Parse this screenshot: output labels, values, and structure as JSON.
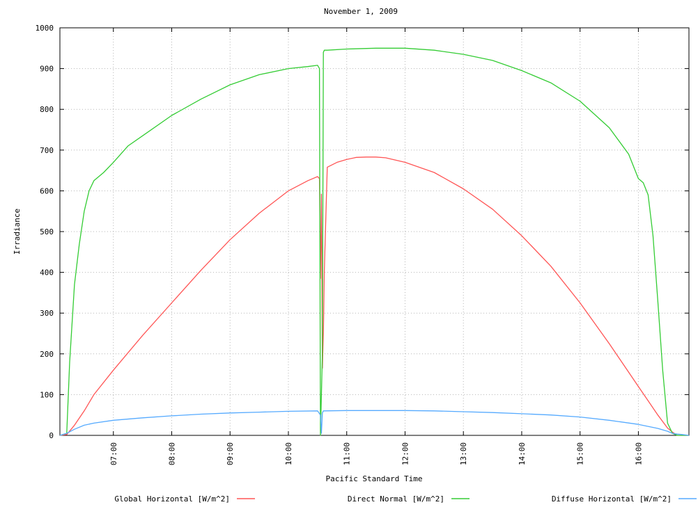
{
  "chart_data": {
    "type": "line",
    "title": "November 1, 2009",
    "xlabel": "Pacific Standard Time",
    "ylabel": "Irradiance",
    "xlim": [
      "06:05",
      "16:52"
    ],
    "ylim": [
      0,
      1000
    ],
    "grid": true,
    "legend_position": "bottom",
    "x_ticks": [
      "07:00",
      "08:00",
      "09:00",
      "10:00",
      "11:00",
      "12:00",
      "13:00",
      "14:00",
      "15:00",
      "16:00"
    ],
    "y_ticks": [
      0,
      100,
      200,
      300,
      400,
      500,
      600,
      700,
      800,
      900,
      1000
    ],
    "series": [
      {
        "name": "Global Horizontal [W/m^2]",
        "color": "#ff5555",
        "x": [
          "06:05",
          "06:12",
          "06:20",
          "06:30",
          "06:40",
          "07:00",
          "07:30",
          "08:00",
          "08:30",
          "09:00",
          "09:30",
          "10:00",
          "10:20",
          "10:30",
          "10:32",
          "10:33",
          "10:34",
          "10:35",
          "10:36",
          "10:37",
          "10:40",
          "10:50",
          "11:00",
          "11:10",
          "11:20",
          "11:30",
          "11:40",
          "12:00",
          "12:30",
          "13:00",
          "13:30",
          "14:00",
          "14:30",
          "15:00",
          "15:30",
          "16:00",
          "16:10",
          "16:20",
          "16:30",
          "16:35",
          "16:40",
          "16:45",
          "16:52"
        ],
        "values": [
          0,
          2,
          25,
          60,
          100,
          160,
          245,
          325,
          405,
          480,
          545,
          600,
          625,
          635,
          630,
          385,
          592,
          165,
          250,
          405,
          658,
          670,
          677,
          682,
          683,
          683,
          681,
          670,
          645,
          605,
          555,
          490,
          415,
          325,
          225,
          120,
          85,
          50,
          18,
          8,
          0,
          0,
          0
        ]
      },
      {
        "name": "Direct Normal [W/m^2]",
        "color": "#33cc33",
        "x": [
          "06:05",
          "06:12",
          "06:15",
          "06:20",
          "06:25",
          "06:30",
          "06:35",
          "06:40",
          "06:50",
          "07:00",
          "07:15",
          "07:30",
          "08:00",
          "08:30",
          "09:00",
          "09:30",
          "10:00",
          "10:20",
          "10:30",
          "10:32",
          "10:33",
          "10:35",
          "10:36",
          "10:37",
          "10:40",
          "11:00",
          "11:30",
          "12:00",
          "12:30",
          "13:00",
          "13:30",
          "14:00",
          "14:30",
          "15:00",
          "15:30",
          "15:50",
          "16:00",
          "16:05",
          "16:10",
          "16:15",
          "16:20",
          "16:25",
          "16:30",
          "16:35",
          "16:40",
          "16:45",
          "16:52"
        ],
        "values": [
          0,
          5,
          180,
          370,
          470,
          550,
          600,
          625,
          645,
          670,
          710,
          735,
          785,
          825,
          860,
          885,
          900,
          905,
          908,
          900,
          0,
          200,
          940,
          945,
          945,
          948,
          950,
          950,
          945,
          935,
          920,
          895,
          865,
          820,
          755,
          690,
          630,
          620,
          590,
          490,
          330,
          160,
          30,
          5,
          0,
          0,
          0
        ]
      },
      {
        "name": "Diffuse Horizontal [W/m^2]",
        "color": "#55aaff",
        "x": [
          "06:05",
          "06:12",
          "06:20",
          "06:30",
          "06:40",
          "07:00",
          "07:30",
          "08:00",
          "08:30",
          "09:00",
          "09:30",
          "10:00",
          "10:30",
          "10:33",
          "10:34",
          "10:35",
          "10:36",
          "11:00",
          "11:30",
          "12:00",
          "12:30",
          "13:00",
          "13:30",
          "14:00",
          "14:30",
          "15:00",
          "15:30",
          "16:00",
          "16:20",
          "16:30",
          "16:35",
          "16:40",
          "16:45",
          "16:52"
        ],
        "values": [
          0,
          5,
          15,
          25,
          30,
          37,
          43,
          48,
          52,
          55,
          57,
          59,
          60,
          50,
          5,
          55,
          60,
          61,
          61,
          61,
          60,
          58,
          56,
          53,
          50,
          45,
          37,
          27,
          17,
          10,
          5,
          3,
          2,
          0
        ]
      }
    ]
  }
}
